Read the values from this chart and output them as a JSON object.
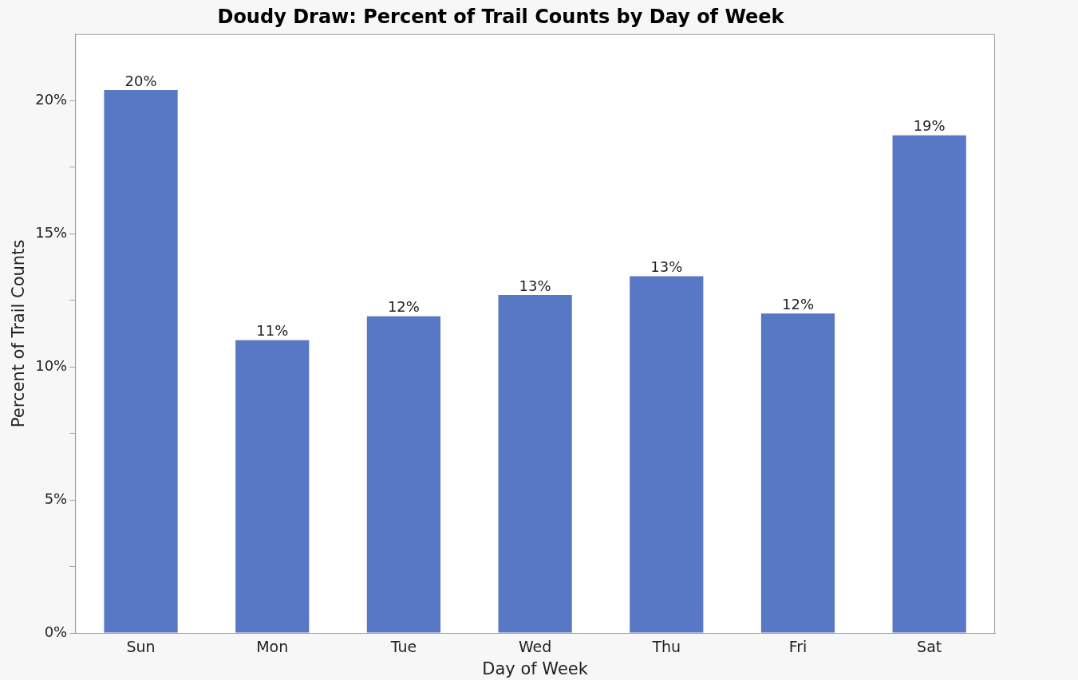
{
  "chart_data": {
    "type": "bar",
    "title": "Doudy Draw: Percent of Trail Counts by Day of Week",
    "xlabel": "Day of Week",
    "ylabel": "Percent of Trail Counts",
    "categories": [
      "Sun",
      "Mon",
      "Tue",
      "Wed",
      "Thu",
      "Fri",
      "Sat"
    ],
    "values": [
      20.4,
      11.0,
      11.9,
      12.7,
      13.4,
      12.0,
      18.7
    ],
    "value_labels": [
      "20%",
      "11%",
      "12%",
      "13%",
      "13%",
      "12%",
      "19%"
    ],
    "color": "#5877c4",
    "ylim": [
      0,
      22.5
    ],
    "yticks": [
      {
        "value": 0,
        "label": "0%"
      },
      {
        "value": 2.5,
        "label": null
      },
      {
        "value": 5,
        "label": "5%"
      },
      {
        "value": 7.5,
        "label": null
      },
      {
        "value": 10,
        "label": "10%"
      },
      {
        "value": 12.5,
        "label": null
      },
      {
        "value": 15,
        "label": "15%"
      },
      {
        "value": 17.5,
        "label": null
      },
      {
        "value": 20,
        "label": "20%"
      }
    ],
    "grid": false,
    "legend": false
  }
}
